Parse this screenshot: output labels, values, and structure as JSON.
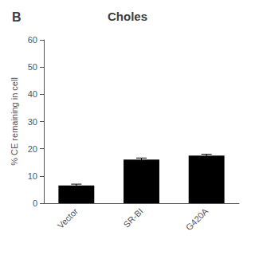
{
  "chart_data": {
    "type": "bar",
    "title": "Choles",
    "annotations": [
      "B"
    ],
    "categories": [
      "Vector",
      "SR-BI",
      "G420A"
    ],
    "values": [
      6.5,
      16.0,
      17.5
    ],
    "errors": [
      0.5,
      0.6,
      0.5
    ],
    "color": "#000000",
    "ylabel": "% CE remaining in cell",
    "ylim": [
      0,
      60
    ],
    "yticks": [
      0,
      10,
      20,
      30,
      40,
      50,
      60
    ],
    "grid": false
  }
}
